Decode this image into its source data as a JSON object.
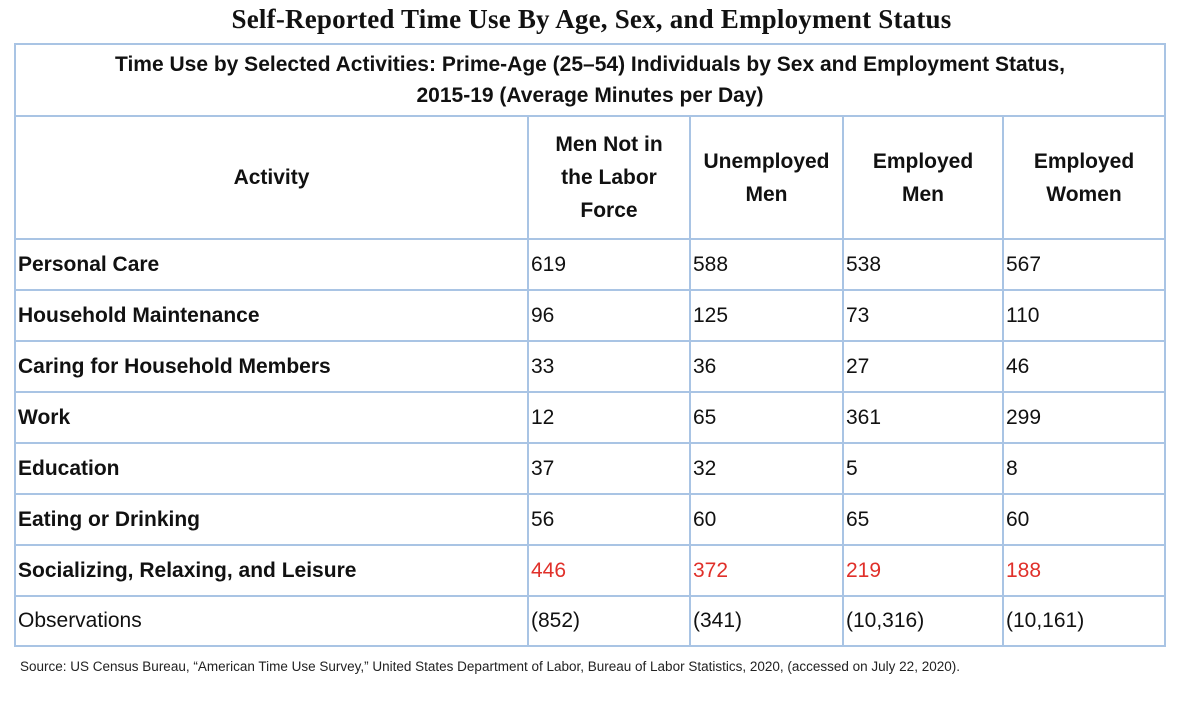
{
  "title": "Self-Reported Time Use By Age, Sex, and Employment Status",
  "table": {
    "caption_line1": "Time Use by Selected Activities: Prime-Age (25–54) Individuals by Sex and Employment Status,",
    "caption_line2": "2015-19 (Average Minutes per Day)",
    "headers": {
      "activity": "Activity",
      "col1_line1": "Men Not in",
      "col1_line2": "the Labor",
      "col1_line3": "Force",
      "col2_line1": "Unemployed",
      "col2_line2": "Men",
      "col3_line1": "Employed",
      "col3_line2": "Men",
      "col4_line1": "Employed",
      "col4_line2": "Women"
    },
    "rows": [
      {
        "label": "Personal Care",
        "values": [
          "619",
          "588",
          "538",
          "567"
        ]
      },
      {
        "label": "Household Maintenance",
        "values": [
          "96",
          "125",
          "73",
          "110"
        ]
      },
      {
        "label": "Caring for Household Members",
        "values": [
          "33",
          "36",
          "27",
          "46"
        ]
      },
      {
        "label": "Work",
        "values": [
          "12",
          "65",
          "361",
          "299"
        ]
      },
      {
        "label": "Education",
        "values": [
          "37",
          "32",
          "5",
          "8"
        ]
      },
      {
        "label": "Eating or Drinking",
        "values": [
          "56",
          "60",
          "65",
          "60"
        ]
      },
      {
        "label": "Socializing, Relaxing, and Leisure",
        "values": [
          "446",
          "372",
          "219",
          "188"
        ]
      },
      {
        "label": "Observations",
        "values": [
          "(852)",
          "(341)",
          "(10,316)",
          "(10,161)"
        ]
      }
    ],
    "highlight_color": "#e0302a",
    "border_color": "#a9c4e4"
  },
  "source": "Source: US Census Bureau, “American Time Use Survey,” United States Department of Labor, Bureau of Labor Statistics, 2020, (accessed on July 22, 2020)."
}
